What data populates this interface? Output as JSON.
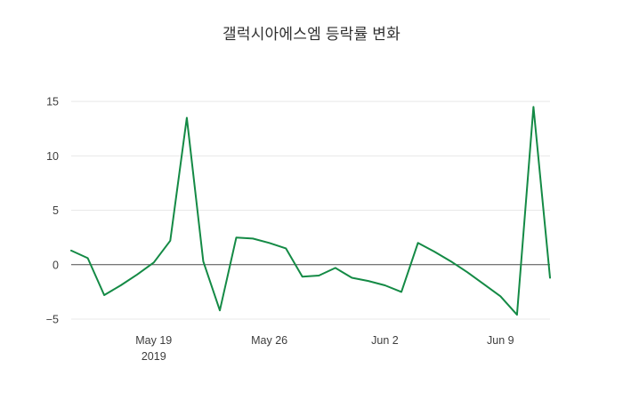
{
  "chart_data": {
    "type": "line",
    "title": "갤럭시아에스엠 등락률 변화",
    "xlabel": "",
    "ylabel": "",
    "x": [
      "2019-05-14",
      "2019-05-15",
      "2019-05-16",
      "2019-05-17",
      "2019-05-18",
      "2019-05-19",
      "2019-05-20",
      "2019-05-21",
      "2019-05-22",
      "2019-05-23",
      "2019-05-24",
      "2019-05-25",
      "2019-05-26",
      "2019-05-27",
      "2019-05-28",
      "2019-05-29",
      "2019-05-30",
      "2019-05-31",
      "2019-06-01",
      "2019-06-02",
      "2019-06-03",
      "2019-06-04",
      "2019-06-05",
      "2019-06-06",
      "2019-06-07",
      "2019-06-08",
      "2019-06-09",
      "2019-06-10",
      "2019-06-11",
      "2019-06-12"
    ],
    "values": [
      1.3,
      0.6,
      -2.8,
      -1.9,
      -0.9,
      0.2,
      2.2,
      13.5,
      0.3,
      -4.2,
      2.5,
      2.4,
      2.0,
      1.5,
      -1.1,
      -1.0,
      -0.3,
      -1.2,
      -1.5,
      -1.9,
      -2.5,
      2.0,
      1.2,
      0.3,
      -0.7,
      -1.8,
      -2.9,
      -4.6,
      14.5,
      -1.2
    ],
    "ylim": [
      -5.9,
      15.5
    ],
    "yticks": [
      -5,
      0,
      5,
      10,
      15
    ],
    "xticks": [
      {
        "index": 5,
        "label": "May 19",
        "sublabel": "2019"
      },
      {
        "index": 12,
        "label": "May 26"
      },
      {
        "index": 19,
        "label": "Jun 2"
      },
      {
        "index": 26,
        "label": "Jun 9"
      }
    ],
    "grid": "horizontal-faint",
    "legend": "none",
    "colors": {
      "line": "#148a45",
      "grid": "#e8e8e8",
      "zeroline": "#4a4a4a",
      "title_text": "#2f2f2f",
      "tick_text": "#3d3d3d",
      "background": "#ffffff"
    }
  }
}
